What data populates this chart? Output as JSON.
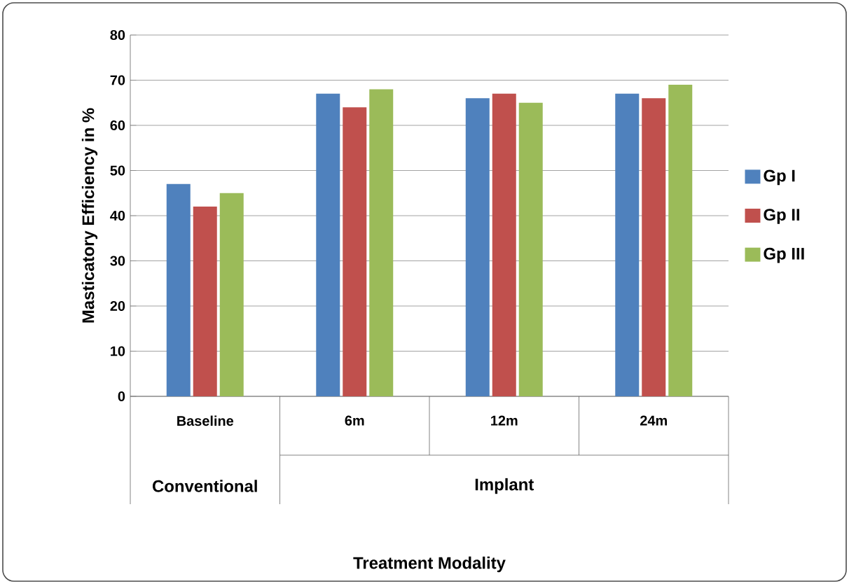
{
  "chart_data": {
    "type": "bar",
    "categories": [
      "Baseline",
      "6m",
      "12m",
      "24m"
    ],
    "annotations": [
      "Conventional",
      "Implant",
      "Treatment Modality"
    ],
    "series": [
      {
        "name": "Gp I",
        "color": "#4f81bd",
        "values": [
          47,
          67,
          66,
          67
        ]
      },
      {
        "name": "Gp II",
        "color": "#c0504d",
        "values": [
          42,
          64,
          67,
          66
        ]
      },
      {
        "name": "Gp III",
        "color": "#9bbb59",
        "values": [
          45,
          68,
          65,
          69
        ]
      }
    ],
    "ylabel": "Masticatory Efficiency in %",
    "ylim": [
      0,
      80
    ],
    "yticks": [
      0,
      10,
      20,
      30,
      40,
      50,
      60,
      70,
      80
    ],
    "grid": "y",
    "legend": "right"
  }
}
